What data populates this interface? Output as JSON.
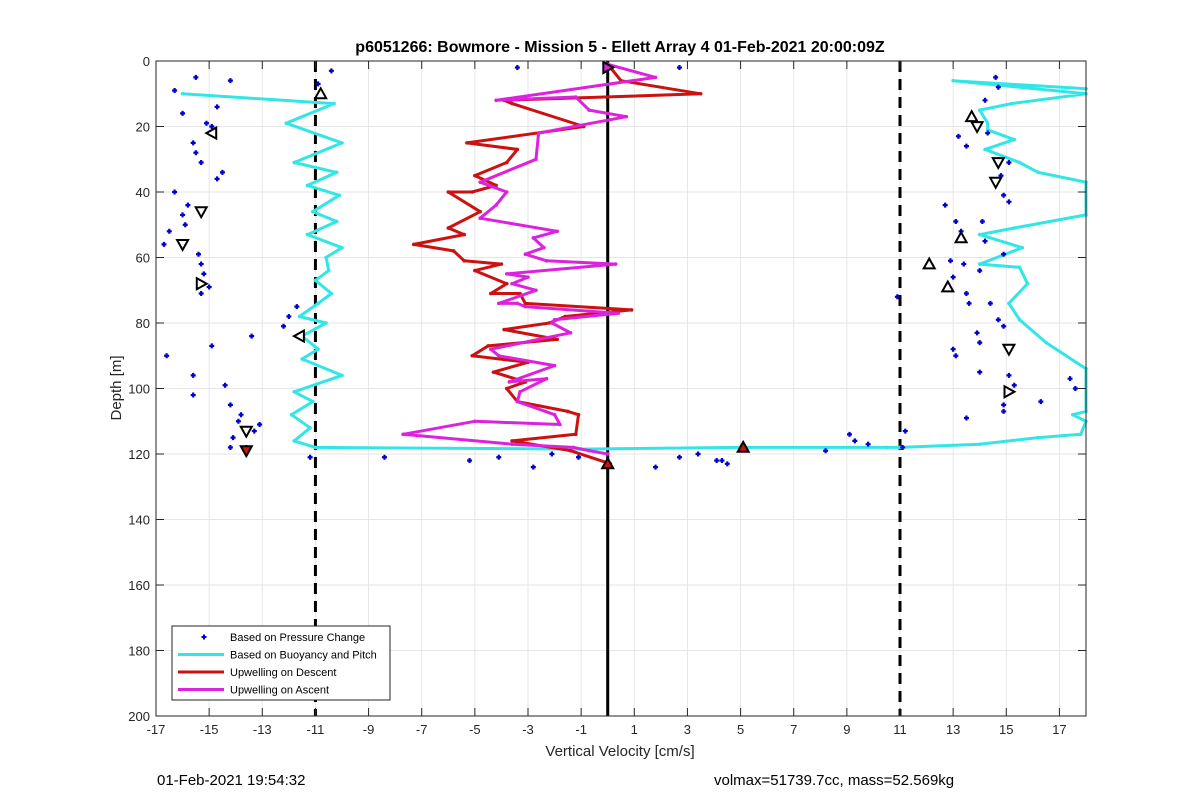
{
  "chart_data": {
    "type": "scatter",
    "title": "p6051266: Bowmore - Mission 5 - Ellett Array 4 01-Feb-2021 20:00:09Z",
    "xlabel": "Vertical Velocity [cm/s]",
    "ylabel": "Depth [m]",
    "xlim": [
      -17,
      18
    ],
    "ylim": [
      0,
      200
    ],
    "y_reversed": true,
    "grid": true,
    "legend_position": "bottom-left",
    "x_ticks": [
      -17,
      -15,
      -13,
      -11,
      -9,
      -7,
      -5,
      -3,
      -1,
      1,
      3,
      5,
      7,
      9,
      11,
      13,
      15,
      17
    ],
    "x_tick_labels": [
      "-17",
      "-15",
      "-13",
      "-11",
      "-9",
      "-7",
      "-5",
      "-3",
      "-1",
      "1",
      "3",
      "5",
      "7",
      "9",
      "11",
      "13",
      "15",
      "17"
    ],
    "y_ticks": [
      0,
      20,
      40,
      60,
      80,
      100,
      120,
      140,
      160,
      180,
      200
    ],
    "y_tick_labels": [
      "0",
      "20",
      "40",
      "60",
      "80",
      "100",
      "120",
      "140",
      "160",
      "180",
      "200"
    ],
    "reference_lines": [
      {
        "x": -11,
        "style": "dashed",
        "color": "#000000"
      },
      {
        "x": 11,
        "style": "dashed",
        "color": "#000000"
      },
      {
        "x": 0,
        "style": "solid",
        "color": "#000000"
      }
    ],
    "series": [
      {
        "name": "Based on Pressure Change",
        "color": "#0000cc",
        "style": "points",
        "points": [
          [
            -15.5,
            5
          ],
          [
            -14.2,
            6
          ],
          [
            -16.3,
            9
          ],
          [
            -16,
            16
          ],
          [
            -10.4,
            3
          ],
          [
            -10.9,
            7
          ],
          [
            -14.7,
            14
          ],
          [
            -15.1,
            19
          ],
          [
            -14.9,
            20
          ],
          [
            -15.6,
            25
          ],
          [
            -15.5,
            28
          ],
          [
            -15.3,
            31
          ],
          [
            -14.5,
            34
          ],
          [
            -14.7,
            36
          ],
          [
            -16.3,
            40
          ],
          [
            -15.8,
            44
          ],
          [
            -16,
            47
          ],
          [
            -16.5,
            52
          ],
          [
            -16.7,
            56
          ],
          [
            -15.9,
            50
          ],
          [
            -15.4,
            59
          ],
          [
            -15.3,
            62
          ],
          [
            -15.2,
            65
          ],
          [
            -15.0,
            69
          ],
          [
            -15.3,
            71
          ],
          [
            -11.7,
            75
          ],
          [
            -12,
            78
          ],
          [
            -12.2,
            81
          ],
          [
            -13.4,
            84
          ],
          [
            -14.9,
            87
          ],
          [
            -16.6,
            90
          ],
          [
            -15.6,
            96
          ],
          [
            -14.4,
            99
          ],
          [
            -15.6,
            102
          ],
          [
            -14.2,
            105
          ],
          [
            -13.8,
            108
          ],
          [
            -13.9,
            110
          ],
          [
            -13.1,
            111
          ],
          [
            -13.3,
            113
          ],
          [
            -14.1,
            115
          ],
          [
            -14.2,
            118
          ],
          [
            -13.6,
            118
          ],
          [
            -11.2,
            121
          ],
          [
            -8.4,
            121
          ],
          [
            -5.2,
            122
          ],
          [
            -4.1,
            121
          ],
          [
            -2.8,
            124
          ],
          [
            -3.4,
            2
          ],
          [
            -2.1,
            120
          ],
          [
            -1.1,
            121
          ],
          [
            1.8,
            124
          ],
          [
            2.7,
            121
          ],
          [
            3.4,
            120
          ],
          [
            4.1,
            122
          ],
          [
            4.3,
            122
          ],
          [
            4.5,
            123
          ],
          [
            2.7,
            2
          ],
          [
            8.2,
            119
          ],
          [
            9.1,
            114
          ],
          [
            9.3,
            116
          ],
          [
            9.8,
            117
          ],
          [
            10.9,
            72
          ],
          [
            11.2,
            113
          ],
          [
            11.1,
            118
          ],
          [
            12.7,
            44
          ],
          [
            13.1,
            49
          ],
          [
            13.3,
            52
          ],
          [
            14.6,
            5
          ],
          [
            14.7,
            8
          ],
          [
            13.2,
            23
          ],
          [
            13.5,
            26
          ],
          [
            14.2,
            12
          ],
          [
            13.7,
            18
          ],
          [
            14.3,
            22
          ],
          [
            15.1,
            31
          ],
          [
            14.8,
            35
          ],
          [
            14.9,
            41
          ],
          [
            15.1,
            43
          ],
          [
            14.1,
            49
          ],
          [
            14.2,
            55
          ],
          [
            14.9,
            59
          ],
          [
            12.9,
            61
          ],
          [
            13.4,
            62
          ],
          [
            14.0,
            64
          ],
          [
            13.0,
            66
          ],
          [
            13.5,
            71
          ],
          [
            13.6,
            74
          ],
          [
            14.4,
            74
          ],
          [
            14.7,
            79
          ],
          [
            14.9,
            81
          ],
          [
            13.9,
            83
          ],
          [
            14.0,
            86
          ],
          [
            13.0,
            88
          ],
          [
            13.1,
            90
          ],
          [
            14.0,
            95
          ],
          [
            15.1,
            96
          ],
          [
            15.3,
            99
          ],
          [
            14.9,
            105
          ],
          [
            14.9,
            107
          ],
          [
            16.3,
            104
          ],
          [
            17.4,
            97
          ],
          [
            17.6,
            100
          ],
          [
            13.5,
            109
          ]
        ]
      },
      {
        "name": "Based on Buoyancy and Pitch",
        "color": "#33e6e6",
        "style": "line",
        "points": [
          [
            -16.0,
            10
          ],
          [
            -10.3,
            13
          ],
          [
            -12.1,
            19
          ],
          [
            -10.0,
            25
          ],
          [
            -11.8,
            31
          ],
          [
            -10.2,
            34
          ],
          [
            -11.3,
            38
          ],
          [
            -10.1,
            41
          ],
          [
            -11.1,
            46
          ],
          [
            -10.2,
            49
          ],
          [
            -11.3,
            53
          ],
          [
            -10.0,
            57
          ],
          [
            -10.6,
            60
          ],
          [
            -10.5,
            64
          ],
          [
            -11.0,
            67
          ],
          [
            -10.4,
            71
          ],
          [
            -10.9,
            74
          ],
          [
            -11.6,
            78
          ],
          [
            -10.6,
            80
          ],
          [
            -11.5,
            84
          ],
          [
            -10.9,
            88
          ],
          [
            -11.5,
            91
          ],
          [
            -10.0,
            96
          ],
          [
            -11.8,
            101
          ],
          [
            -11.1,
            104
          ],
          [
            -11.9,
            108
          ],
          [
            -11.2,
            112
          ],
          [
            -11.8,
            116
          ],
          [
            -11.0,
            118
          ],
          [
            -1.0,
            118.5
          ],
          [
            5.0,
            118
          ],
          [
            10.5,
            118
          ],
          [
            11.0,
            118
          ],
          [
            14.0,
            117
          ],
          [
            16.2,
            115
          ],
          [
            17.8,
            114
          ],
          [
            18.0,
            110
          ],
          [
            17.5,
            108
          ],
          [
            18.0,
            107
          ],
          [
            18.0,
            94
          ],
          [
            16.5,
            86
          ],
          [
            15.5,
            79
          ],
          [
            15.1,
            74
          ],
          [
            15.8,
            68
          ],
          [
            15.5,
            63
          ],
          [
            14.0,
            62
          ],
          [
            15.6,
            57
          ],
          [
            14.0,
            53
          ],
          [
            15.3,
            51
          ],
          [
            18.0,
            47
          ],
          [
            18.0,
            37
          ],
          [
            16.2,
            34
          ],
          [
            15.5,
            31
          ],
          [
            14.2,
            27
          ],
          [
            15.3,
            24
          ],
          [
            14.3,
            21
          ],
          [
            14.3,
            19
          ],
          [
            14.0,
            15
          ],
          [
            15.2,
            13
          ],
          [
            18.0,
            10
          ],
          [
            13.0,
            6
          ],
          [
            18.0,
            8.5
          ]
        ]
      },
      {
        "name": "Upwelling on Descent",
        "color": "#cc1111",
        "style": "line",
        "points": [
          [
            0.1,
            2
          ],
          [
            0.5,
            6
          ],
          [
            3.5,
            10
          ],
          [
            -3.9,
            12
          ],
          [
            -3.6,
            13
          ],
          [
            -0.9,
            20
          ],
          [
            -5.3,
            25
          ],
          [
            -3.4,
            27
          ],
          [
            -3.8,
            31
          ],
          [
            -5.0,
            35
          ],
          [
            -4.2,
            38
          ],
          [
            -5.1,
            40
          ],
          [
            -6.0,
            40
          ],
          [
            -4.8,
            46
          ],
          [
            -6.0,
            51
          ],
          [
            -5.4,
            53
          ],
          [
            -7.3,
            56
          ],
          [
            -5.8,
            58
          ],
          [
            -5.4,
            61
          ],
          [
            -4.0,
            62
          ],
          [
            -5.0,
            64
          ],
          [
            -3.8,
            68
          ],
          [
            -4.4,
            71
          ],
          [
            -3.3,
            71
          ],
          [
            -3.1,
            74
          ],
          [
            0.9,
            76
          ],
          [
            -1.6,
            78
          ],
          [
            -2.2,
            80
          ],
          [
            -3.9,
            82
          ],
          [
            -1.9,
            85
          ],
          [
            -4.5,
            87
          ],
          [
            -5.1,
            90
          ],
          [
            -3.0,
            92
          ],
          [
            -4.3,
            95
          ],
          [
            -3.1,
            98
          ],
          [
            -3.8,
            100
          ],
          [
            -3.4,
            104
          ],
          [
            -1.5,
            107
          ],
          [
            -1.1,
            108
          ],
          [
            -1.2,
            114
          ],
          [
            -3.6,
            116
          ],
          [
            -1.4,
            119
          ],
          [
            0.1,
            123
          ]
        ]
      },
      {
        "name": "Upwelling on Ascent",
        "color": "#dd22dd",
        "style": "line",
        "points": [
          [
            0.0,
            1
          ],
          [
            1.8,
            5
          ],
          [
            -4.2,
            12
          ],
          [
            -1.2,
            11
          ],
          [
            -0.7,
            15
          ],
          [
            0.7,
            17
          ],
          [
            -2.6,
            22
          ],
          [
            -2.7,
            30
          ],
          [
            -4.8,
            37
          ],
          [
            -3.8,
            40
          ],
          [
            -4.2,
            44
          ],
          [
            -4.8,
            48
          ],
          [
            -1.9,
            52
          ],
          [
            -2.8,
            54
          ],
          [
            -2.4,
            57
          ],
          [
            -3.1,
            59
          ],
          [
            -2.3,
            61
          ],
          [
            0.3,
            62
          ],
          [
            -3.8,
            65
          ],
          [
            -3.0,
            66
          ],
          [
            -3.6,
            68
          ],
          [
            -2.7,
            70
          ],
          [
            -4.1,
            74
          ],
          [
            -3.4,
            74
          ],
          [
            -3.1,
            75
          ],
          [
            0.4,
            77
          ],
          [
            -2.0,
            79
          ],
          [
            -2.1,
            80
          ],
          [
            -1.4,
            83
          ],
          [
            -4.4,
            88
          ],
          [
            -4.1,
            90
          ],
          [
            -2.0,
            93
          ],
          [
            -3.7,
            98
          ],
          [
            -2.3,
            97
          ],
          [
            -3.3,
            101
          ],
          [
            -3.4,
            104
          ],
          [
            -2.0,
            108
          ],
          [
            -1.8,
            111
          ],
          [
            -5.0,
            110
          ],
          [
            -7.7,
            114
          ],
          [
            -3.6,
            117
          ],
          [
            -1.3,
            118
          ],
          [
            -0.7,
            119
          ],
          [
            0.0,
            120
          ]
        ]
      }
    ],
    "markers": [
      {
        "x": -10.8,
        "y": 10,
        "shape": "tri-up",
        "fill": "#ffffff"
      },
      {
        "x": -14.9,
        "y": 22,
        "shape": "tri-left",
        "fill": "#ffffff"
      },
      {
        "x": -15.3,
        "y": 46,
        "shape": "tri-down",
        "fill": "#ffffff"
      },
      {
        "x": -16.0,
        "y": 56,
        "shape": "tri-down",
        "fill": "#ffffff"
      },
      {
        "x": -15.3,
        "y": 68,
        "shape": "tri-right",
        "fill": "#ffffff"
      },
      {
        "x": -11.6,
        "y": 84,
        "shape": "tri-left",
        "fill": "#ffffff"
      },
      {
        "x": -13.6,
        "y": 113,
        "shape": "tri-down",
        "fill": "#ffffff"
      },
      {
        "x": -13.6,
        "y": 119,
        "shape": "tri-down",
        "fill": "#cc1111"
      },
      {
        "x": 0.0,
        "y": 2,
        "shape": "tri-right",
        "fill": "#dd22dd"
      },
      {
        "x": 0.0,
        "y": 123,
        "shape": "tri-up",
        "fill": "#cc1111"
      },
      {
        "x": 5.1,
        "y": 118,
        "shape": "tri-up",
        "fill": "#cc1111"
      },
      {
        "x": 13.7,
        "y": 17,
        "shape": "tri-up",
        "fill": "#ffffff"
      },
      {
        "x": 13.9,
        "y": 20,
        "shape": "tri-down",
        "fill": "#ffffff"
      },
      {
        "x": 14.7,
        "y": 31,
        "shape": "tri-down",
        "fill": "#ffffff"
      },
      {
        "x": 14.6,
        "y": 37,
        "shape": "tri-down",
        "fill": "#ffffff"
      },
      {
        "x": 13.3,
        "y": 54,
        "shape": "tri-up",
        "fill": "#ffffff"
      },
      {
        "x": 12.1,
        "y": 62,
        "shape": "tri-up",
        "fill": "#ffffff"
      },
      {
        "x": 12.8,
        "y": 69,
        "shape": "tri-up",
        "fill": "#ffffff"
      },
      {
        "x": 15.1,
        "y": 88,
        "shape": "tri-down",
        "fill": "#ffffff"
      },
      {
        "x": 15.1,
        "y": 101,
        "shape": "tri-right",
        "fill": "#ffffff"
      }
    ]
  },
  "footer": {
    "timestamp": "01-Feb-2021 19:54:32",
    "stats": "volmax=51739.7cc, mass=52.569kg"
  }
}
